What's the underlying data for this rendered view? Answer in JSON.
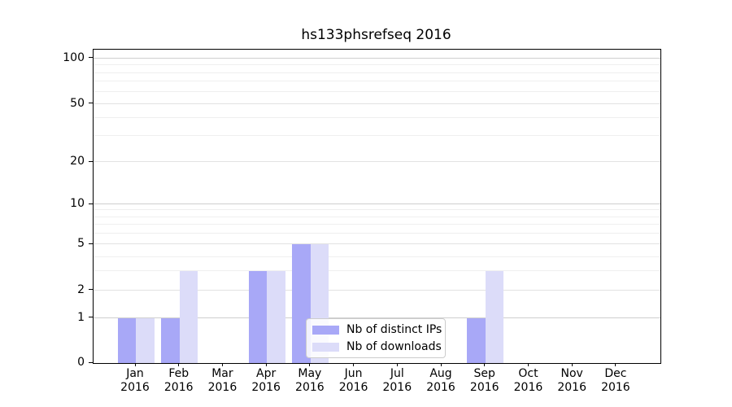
{
  "title": "hs133phsrefseq 2016",
  "chart_data": {
    "type": "bar",
    "title": "hs133phsrefseq 2016",
    "categories": [
      "Jan",
      "Feb",
      "Mar",
      "Apr",
      "May",
      "Jun",
      "Jul",
      "Aug",
      "Sep",
      "Oct",
      "Nov",
      "Dec"
    ],
    "x_year_label": "2016",
    "series": [
      {
        "name": "Nb of distinct IPs",
        "color": "#a8a8f7",
        "values": [
          1,
          1,
          0,
          3,
          5,
          0,
          0,
          0,
          1,
          0,
          0,
          0
        ]
      },
      {
        "name": "Nb of downloads",
        "color": "#dcdcf9",
        "values": [
          1,
          3,
          0,
          3,
          5,
          0,
          0,
          0,
          3,
          0,
          0,
          0
        ]
      }
    ],
    "y_axis": {
      "scale": "log-like",
      "range": [
        0,
        100
      ],
      "major_ticks": [
        0,
        1,
        2,
        5,
        10,
        20,
        50,
        100
      ],
      "minor_ticks": [
        3,
        4,
        6,
        7,
        8,
        9,
        30,
        40,
        60,
        70,
        80,
        90
      ]
    },
    "grid": true,
    "legend_position": "lower-center"
  },
  "legend": {
    "items": [
      {
        "label": "Nb of distinct IPs",
        "color": "#a8a8f7"
      },
      {
        "label": "Nb of downloads",
        "color": "#dcdcf9"
      }
    ]
  }
}
